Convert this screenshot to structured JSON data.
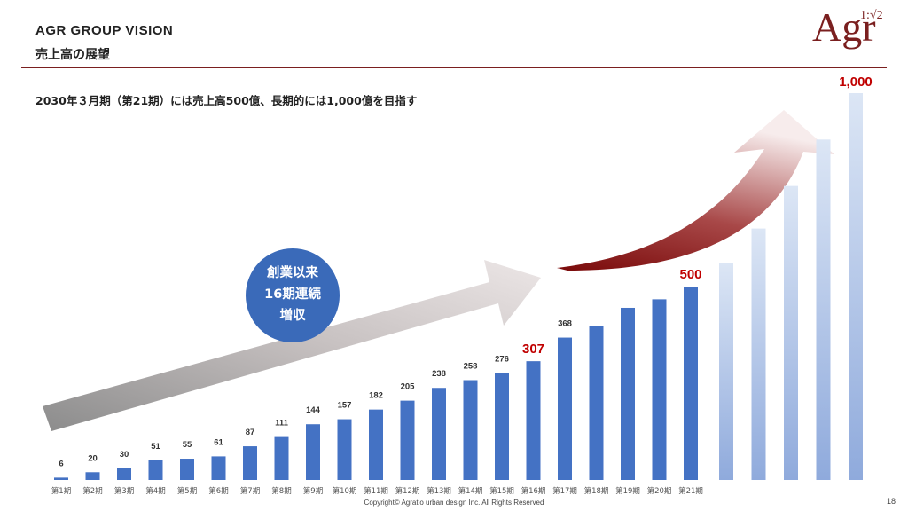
{
  "header": {
    "title": "AGR GROUP VISION",
    "subtitle": "売上高の展望"
  },
  "logo": {
    "text": "Agr",
    "ratio": "1:√2"
  },
  "statement": "2030年３月期（第21期）には売上高500億、長期的には1,000億を目指す",
  "badge": {
    "lines": [
      "創業以来",
      "16期連続",
      "増収"
    ]
  },
  "footer": {
    "copyright": "Copyright© Agratio urban design Inc. All Rights Reserved",
    "page_number": "18"
  },
  "colors": {
    "accent": "#7a1f1f",
    "bar": "#4472c4",
    "highlight_label": "#c00000",
    "future_bar_top": "#dce6f5",
    "future_bar_bottom": "#8faadc"
  },
  "chart_data": {
    "type": "bar",
    "categories": [
      "第1期",
      "第2期",
      "第3期",
      "第4期",
      "第5期",
      "第6期",
      "第7期",
      "第8期",
      "第9期",
      "第10期",
      "第11期",
      "第12期",
      "第13期",
      "第14期",
      "第15期",
      "第16期",
      "第17期",
      "第18期",
      "第19期",
      "第20期",
      "第21期"
    ],
    "values": [
      6,
      20,
      30,
      51,
      55,
      61,
      87,
      111,
      144,
      157,
      182,
      205,
      238,
      258,
      276,
      307,
      368,
      null,
      null,
      null,
      500
    ],
    "data_labels": [
      "6",
      "20",
      "30",
      "51",
      "55",
      "61",
      "87",
      "111",
      "144",
      "157",
      "182",
      "205",
      "238",
      "258",
      "276",
      "307",
      "368",
      "",
      "",
      "",
      "500"
    ],
    "estimated_values": [
      null,
      null,
      null,
      null,
      null,
      null,
      null,
      null,
      null,
      null,
      null,
      null,
      null,
      null,
      null,
      null,
      null,
      397,
      445,
      467,
      500
    ],
    "highlighted_labels": [
      "307",
      "500"
    ],
    "future_series": {
      "values": [
        560,
        650,
        760,
        880,
        1000
      ],
      "labels": [
        "",
        "",
        "",
        "",
        "1,000"
      ]
    },
    "ylim": [
      0,
      1000
    ],
    "title": "",
    "xlabel": "",
    "ylabel": "",
    "legend": "none",
    "grid": false
  }
}
